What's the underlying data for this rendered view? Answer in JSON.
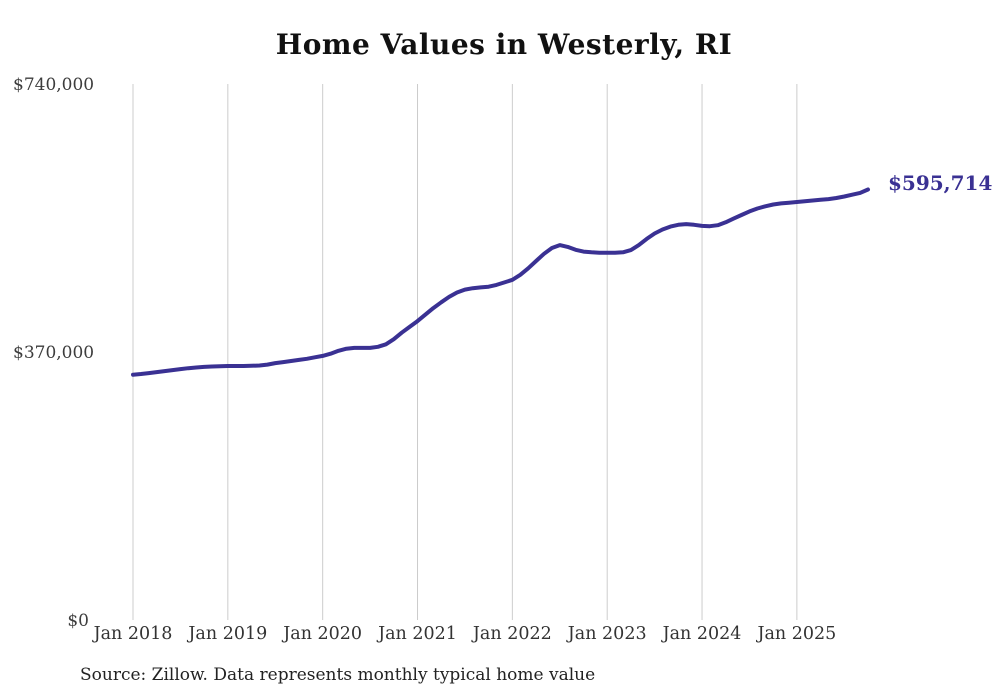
{
  "title": "Home Values in Westerly, RI",
  "source_note": "Source: Zillow. Data represents monthly typical home value",
  "end_label": "$595,714",
  "colors": {
    "line": "#3a3193",
    "grid": "#cccccc",
    "title": "#111111",
    "axis_text": "#333333",
    "background": "#ffffff"
  },
  "chart_data": {
    "type": "line",
    "title": "Home Values in Westerly, RI",
    "series_name": "Monthly typical home value (USD)",
    "x": [
      "2018-01",
      "2018-02",
      "2018-03",
      "2018-04",
      "2018-05",
      "2018-06",
      "2018-07",
      "2018-08",
      "2018-09",
      "2018-10",
      "2018-11",
      "2018-12",
      "2019-01",
      "2019-02",
      "2019-03",
      "2019-04",
      "2019-05",
      "2019-06",
      "2019-07",
      "2019-08",
      "2019-09",
      "2019-10",
      "2019-11",
      "2019-12",
      "2020-01",
      "2020-02",
      "2020-03",
      "2020-04",
      "2020-05",
      "2020-06",
      "2020-07",
      "2020-08",
      "2020-09",
      "2020-10",
      "2020-11",
      "2020-12",
      "2021-01",
      "2021-02",
      "2021-03",
      "2021-04",
      "2021-05",
      "2021-06",
      "2021-07",
      "2021-08",
      "2021-09",
      "2021-10",
      "2021-11",
      "2021-12",
      "2022-01",
      "2022-02",
      "2022-03",
      "2022-04",
      "2022-05",
      "2022-06",
      "2022-07",
      "2022-08",
      "2022-09",
      "2022-10",
      "2022-11",
      "2022-12",
      "2023-01",
      "2023-02",
      "2023-03",
      "2023-04",
      "2023-05",
      "2023-06",
      "2023-07",
      "2023-08",
      "2023-09",
      "2023-10",
      "2023-11",
      "2023-12",
      "2024-01",
      "2024-02",
      "2024-03",
      "2024-04",
      "2024-05",
      "2024-06",
      "2024-07",
      "2024-08",
      "2024-09",
      "2024-10",
      "2024-11",
      "2024-12",
      "2025-01",
      "2025-02",
      "2025-03",
      "2025-04",
      "2025-05",
      "2025-06",
      "2025-07",
      "2025-08",
      "2025-09",
      "2025-10"
    ],
    "values": [
      340000,
      341000,
      342200,
      343600,
      345000,
      346400,
      347800,
      349000,
      350000,
      350800,
      351400,
      351800,
      352000,
      352000,
      352000,
      352300,
      352800,
      354000,
      356000,
      357500,
      359000,
      360500,
      362000,
      364000,
      366000,
      369000,
      373000,
      376000,
      377000,
      377000,
      377000,
      378500,
      382000,
      389000,
      398000,
      406000,
      414000,
      423000,
      432000,
      440000,
      447500,
      453500,
      457500,
      459500,
      460500,
      461500,
      464000,
      467500,
      471000,
      478000,
      487000,
      497000,
      507000,
      515000,
      519000,
      516500,
      512500,
      510000,
      509000,
      508500,
      508500,
      508500,
      509000,
      512000,
      519000,
      527500,
      535000,
      540500,
      544500,
      547000,
      548000,
      547000,
      545500,
      545000,
      546500,
      550500,
      555500,
      560500,
      565500,
      569500,
      572500,
      575000,
      576500,
      577500,
      578500,
      579500,
      580500,
      581500,
      582500,
      584000,
      586000,
      588500,
      591000,
      595714
    ],
    "final_value": 595714,
    "final_value_label": "$595,714",
    "xlabel": "",
    "ylabel": "",
    "ylim": [
      0,
      740000
    ],
    "y_ticks": [
      0,
      370000,
      740000
    ],
    "y_tick_labels": [
      "$0",
      "$370,000",
      "$740,000"
    ],
    "x_tick_indices": [
      0,
      12,
      24,
      36,
      48,
      60,
      72,
      84
    ],
    "x_tick_labels": [
      "Jan 2018",
      "Jan 2019",
      "Jan 2020",
      "Jan 2021",
      "Jan 2022",
      "Jan 2023",
      "Jan 2024",
      "Jan 2025"
    ],
    "grid": "vertical-only",
    "legend": "none",
    "annotation": "Source: Zillow. Data represents monthly typical home value"
  }
}
